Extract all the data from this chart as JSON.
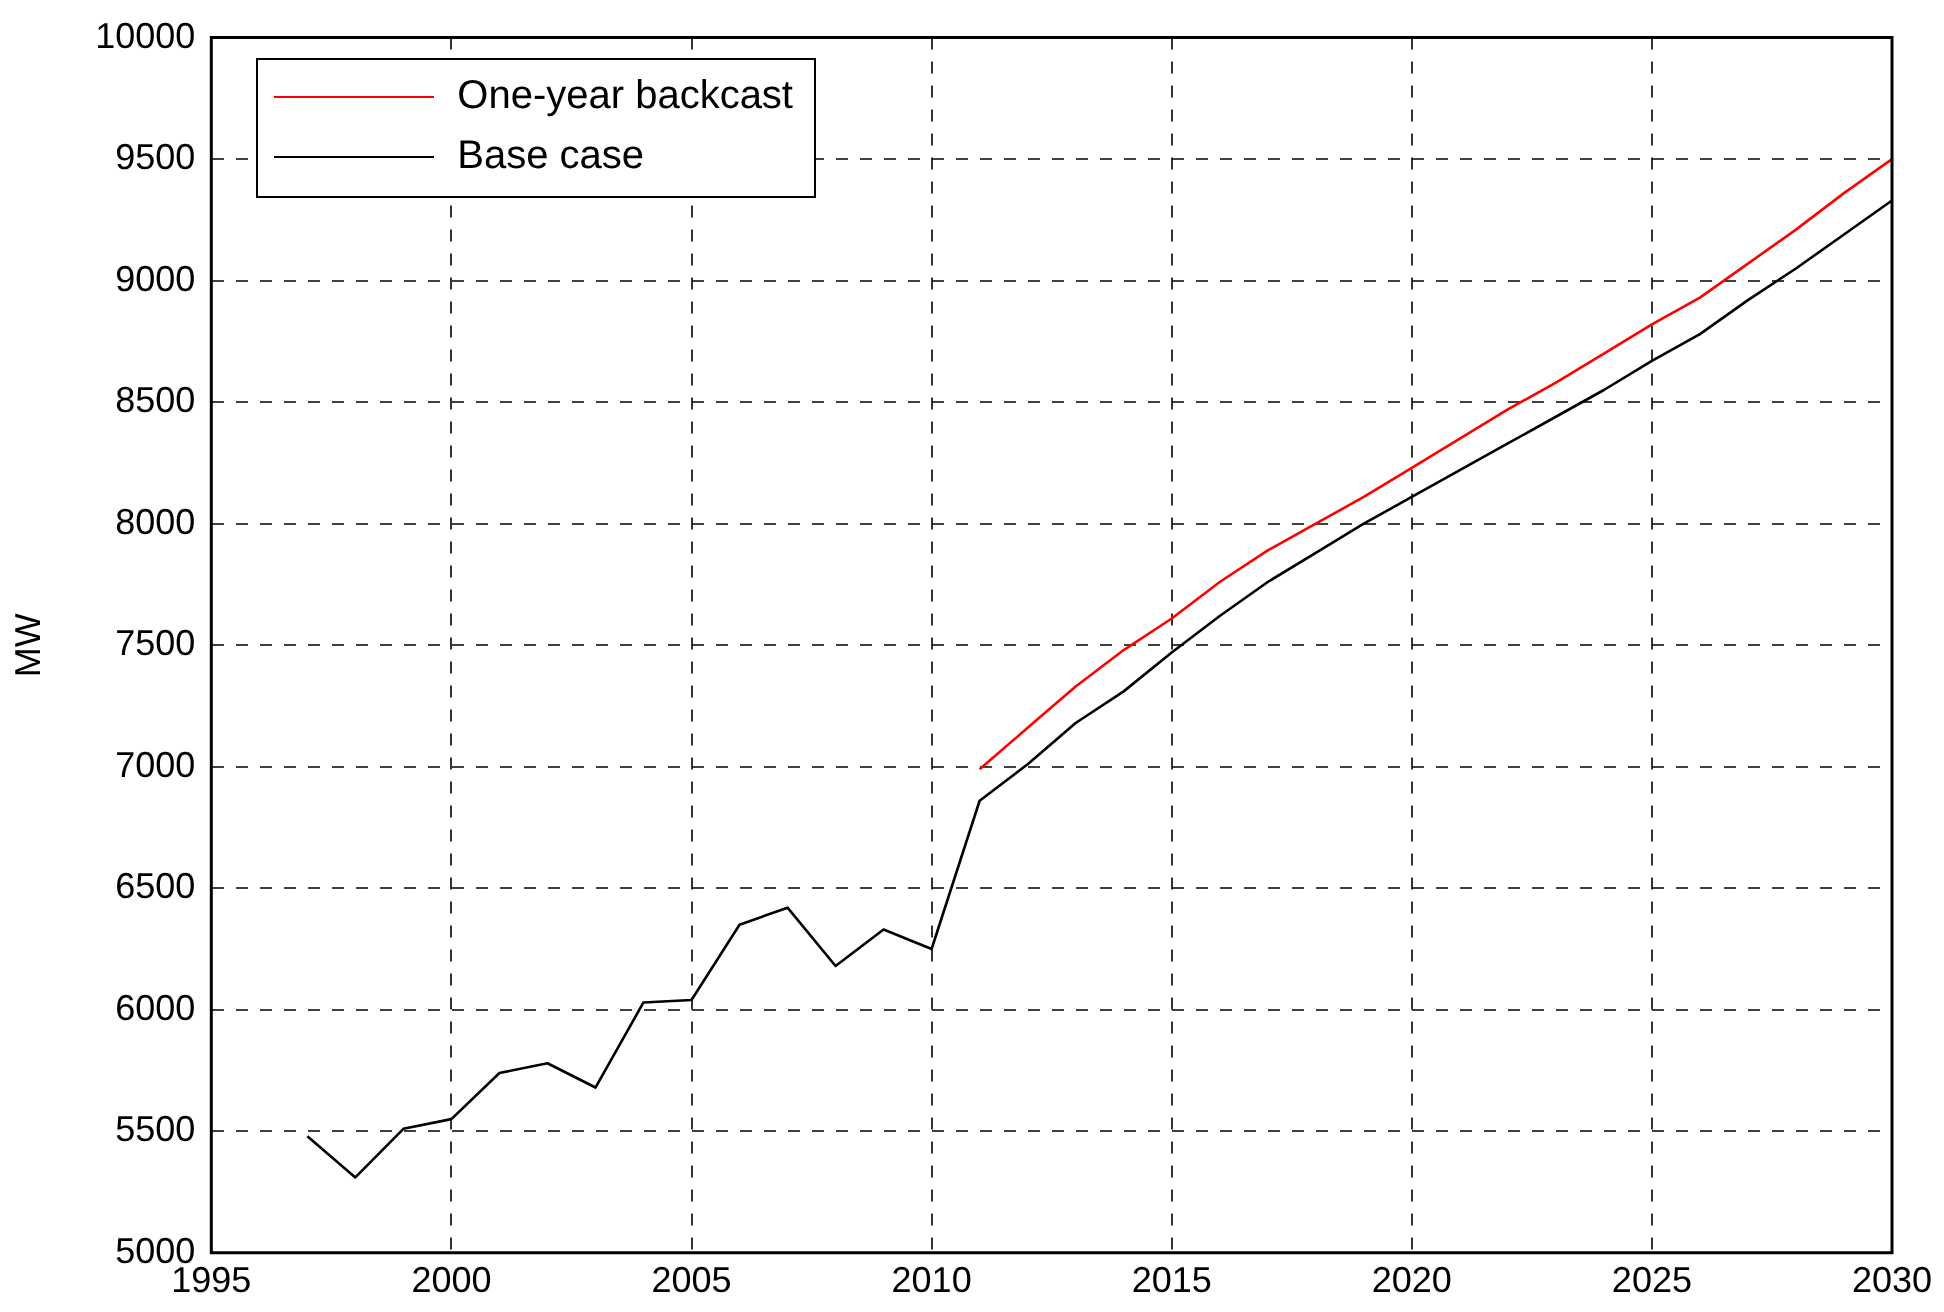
{
  "chart_data": {
    "type": "line",
    "ylabel": "MW",
    "x": [
      1997,
      1998,
      1999,
      2000,
      2001,
      2002,
      2003,
      2004,
      2005,
      2006,
      2007,
      2008,
      2009,
      2010,
      2011,
      2012,
      2013,
      2014,
      2015,
      2016,
      2017,
      2018,
      2019,
      2020,
      2021,
      2022,
      2023,
      2024,
      2025,
      2026,
      2027,
      2028,
      2029,
      2030
    ],
    "series": [
      {
        "name": "One-year backcast",
        "color": "#ff0000",
        "x": [
          2011,
          2012,
          2013,
          2014,
          2015,
          2016,
          2017,
          2018,
          2019,
          2020,
          2021,
          2022,
          2023,
          2024,
          2025,
          2026,
          2027,
          2028,
          2029,
          2030
        ],
        "values": [
          6990,
          7160,
          7330,
          7480,
          7610,
          7760,
          7890,
          8000,
          8110,
          8230,
          8350,
          8470,
          8580,
          8700,
          8820,
          8930,
          9070,
          9210,
          9360,
          9500
        ]
      },
      {
        "name": "Base case",
        "color": "#000000",
        "values": [
          5480,
          5310,
          5510,
          5550,
          5740,
          5780,
          5680,
          6030,
          6040,
          6350,
          6420,
          6180,
          6330,
          6250,
          6860,
          7010,
          7180,
          7310,
          7470,
          7620,
          7760,
          7880,
          8000,
          8110,
          8220,
          8330,
          8440,
          8550,
          8670,
          8780,
          8920,
          9050,
          9190,
          9330
        ]
      }
    ],
    "xlim": [
      1995,
      2030
    ],
    "xticks": [
      1995,
      2000,
      2005,
      2010,
      2015,
      2020,
      2025,
      2030
    ],
    "ylim": [
      5000,
      10000
    ],
    "yticks": [
      5000,
      5500,
      6000,
      6500,
      7000,
      7500,
      8000,
      8500,
      9000,
      9500,
      10000
    ],
    "grid": true,
    "legend": "top left",
    "marker": "none",
    "line_style": "solid"
  }
}
